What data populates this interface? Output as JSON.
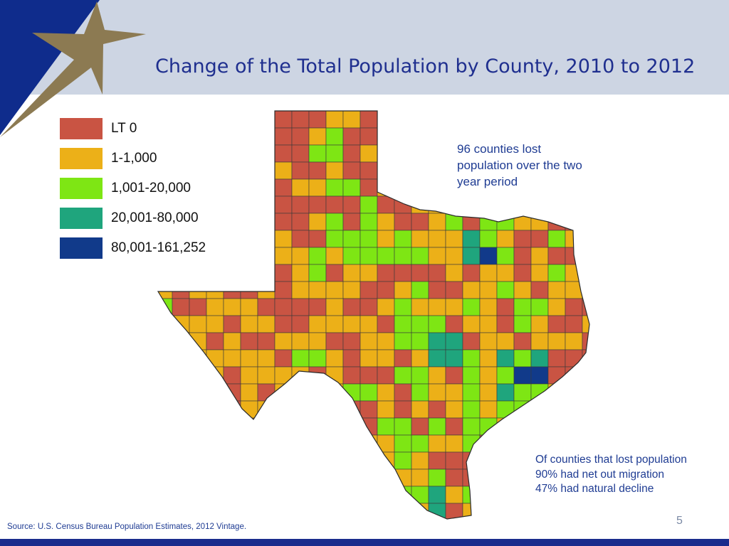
{
  "slide": {
    "title": "Change of the Total Population by County, 2010 to 2012",
    "page_number": "5",
    "source": "Source: U.S. Census Bureau Population Estimates, 2012 Vintage."
  },
  "legend": [
    {
      "label": "LT 0",
      "color": "#c95443"
    },
    {
      "label": "1-1,000",
      "color": "#ecb018"
    },
    {
      "label": "1,001-20,000",
      "color": "#7ee614"
    },
    {
      "label": "20,001-80,000",
      "color": "#1fa57d"
    },
    {
      "label": "80,001-161,252",
      "color": "#113a8a"
    }
  ],
  "notes": {
    "top": "96  counties lost population over the two year period",
    "bottom_lines": [
      "Of counties that lost population",
      "90% had net out migration",
      "47% had natural decline"
    ]
  },
  "colors": {
    "header_band": "#cdd5e3",
    "title_text": "#1f2f8f",
    "note_text": "#1f3c93",
    "footer_band": "#1a2b8c",
    "star": "#8c7a52",
    "corner_navy": "#0f2c8c"
  }
}
